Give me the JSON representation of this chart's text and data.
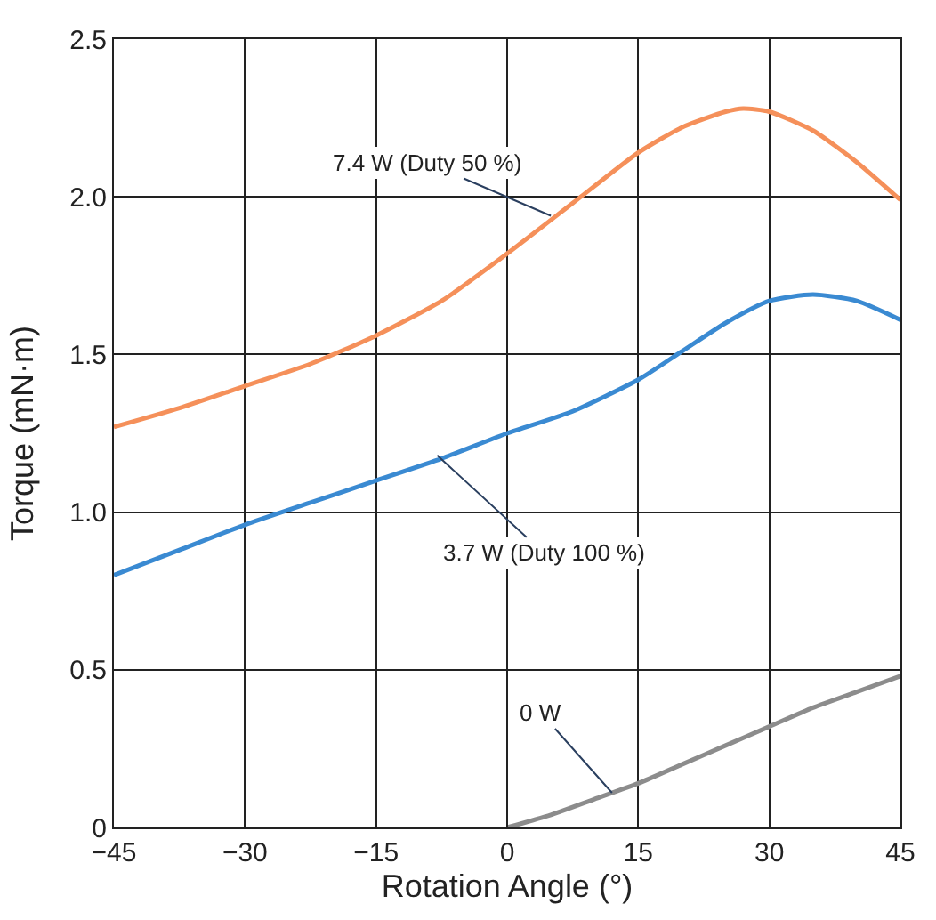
{
  "chart_data": {
    "type": "line",
    "xlabel": "Rotation Angle (°)",
    "ylabel": "Torque (mN·m)",
    "xlim": [
      -45,
      45
    ],
    "xticks": [
      {
        "value": -45,
        "label": "−45"
      },
      {
        "value": -30,
        "label": "−30"
      },
      {
        "value": -15,
        "label": "−15"
      },
      0,
      15,
      30,
      45
    ],
    "ylim": [
      0,
      2.5
    ],
    "yticks": [
      {
        "value": 0,
        "label": "0"
      },
      {
        "value": 0.5,
        "label": "0.5"
      },
      {
        "value": 1,
        "label": "1.0"
      },
      {
        "value": 1.5,
        "label": "1.5"
      },
      {
        "value": 2,
        "label": "2.0"
      },
      {
        "value": 2.5,
        "label": "2.5"
      }
    ],
    "grid": true,
    "marker": "none",
    "line_style": "solid",
    "series": [
      {
        "color": "#f5905a",
        "x": [
          -45,
          -37.5,
          -30,
          -22.5,
          -15,
          -7.5,
          0,
          7.5,
          15,
          20,
          25,
          27,
          30,
          35,
          40,
          45
        ],
        "values": [
          1.27,
          1.33,
          1.4,
          1.47,
          1.56,
          1.67,
          1.82,
          1.98,
          2.14,
          2.22,
          2.27,
          2.28,
          2.27,
          2.21,
          2.11,
          1.99
        ]
      },
      {
        "color": "#3a8ad2",
        "x": [
          -45,
          -37.5,
          -30,
          -22.5,
          -15,
          -7.5,
          0,
          7.5,
          15,
          20,
          25,
          30,
          35,
          40,
          45
        ],
        "values": [
          0.8,
          0.88,
          0.96,
          1.03,
          1.1,
          1.17,
          1.25,
          1.32,
          1.42,
          1.51,
          1.6,
          1.67,
          1.69,
          1.67,
          1.61
        ]
      },
      {
        "color": "#8c8c8c",
        "x": [
          0,
          5,
          10,
          15,
          20,
          25,
          30,
          35,
          40,
          45
        ],
        "values": [
          0,
          0.04,
          0.09,
          0.14,
          0.2,
          0.26,
          0.32,
          0.38,
          0.43,
          0.48
        ]
      }
    ],
    "annotations": [
      {
        "text": "7.4 W (Duty 50 %)",
        "x": 5,
        "y": 1.94
      },
      {
        "text": "3.7 W (Duty 100 %)",
        "x": -8,
        "y": 1.18
      },
      {
        "text": "0 W",
        "x": 12,
        "y": 0.11
      }
    ]
  }
}
